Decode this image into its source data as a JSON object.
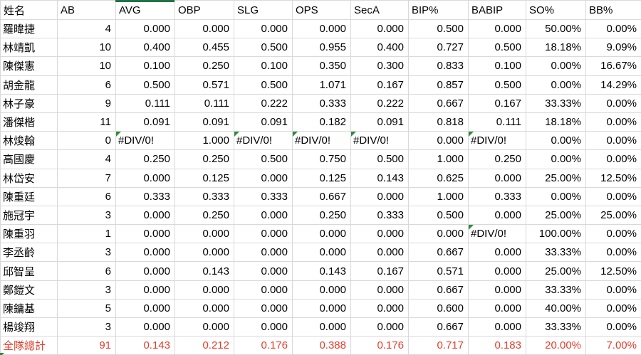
{
  "sheet": {
    "name_header": "姓名",
    "columns": [
      "AB",
      "AVG",
      "OBP",
      "SLG",
      "OPS",
      "SecA",
      "BIP%",
      "BABIP",
      "SO%",
      "BB%"
    ],
    "error_value": "#DIV/0!",
    "rows": [
      {
        "name": "羅暐捷",
        "values": [
          "4",
          "0.000",
          "0.000",
          "0.000",
          "0.000",
          "0.000",
          "0.500",
          "0.000",
          "50.00%",
          "0.00%"
        ]
      },
      {
        "name": "林靖凱",
        "values": [
          "10",
          "0.400",
          "0.455",
          "0.500",
          "0.955",
          "0.400",
          "0.727",
          "0.500",
          "18.18%",
          "9.09%"
        ]
      },
      {
        "name": "陳傑憲",
        "values": [
          "10",
          "0.100",
          "0.250",
          "0.100",
          "0.350",
          "0.300",
          "0.833",
          "0.100",
          "0.00%",
          "16.67%"
        ]
      },
      {
        "name": "胡金龍",
        "values": [
          "6",
          "0.500",
          "0.571",
          "0.500",
          "1.071",
          "0.167",
          "0.857",
          "0.500",
          "0.00%",
          "14.29%"
        ]
      },
      {
        "name": "林子豪",
        "values": [
          "9",
          "0.111",
          "0.111",
          "0.222",
          "0.333",
          "0.222",
          "0.667",
          "0.167",
          "33.33%",
          "0.00%"
        ]
      },
      {
        "name": "潘傑楷",
        "values": [
          "11",
          "0.091",
          "0.091",
          "0.091",
          "0.182",
          "0.091",
          "0.818",
          "0.111",
          "18.18%",
          "0.00%"
        ]
      },
      {
        "name": "林焌翰",
        "values": [
          "0",
          "#DIV/0!",
          "1.000",
          "#DIV/0!",
          "#DIV/0!",
          "#DIV/0!",
          "0.000",
          "#DIV/0!",
          "0.00%",
          "0.00%"
        ]
      },
      {
        "name": "高國慶",
        "values": [
          "4",
          "0.250",
          "0.250",
          "0.500",
          "0.750",
          "0.500",
          "1.000",
          "0.250",
          "0.00%",
          "0.00%"
        ]
      },
      {
        "name": "林岱安",
        "values": [
          "7",
          "0.000",
          "0.125",
          "0.000",
          "0.125",
          "0.143",
          "0.625",
          "0.000",
          "25.00%",
          "12.50%"
        ]
      },
      {
        "name": "陳重廷",
        "values": [
          "6",
          "0.333",
          "0.333",
          "0.333",
          "0.667",
          "0.000",
          "1.000",
          "0.333",
          "0.00%",
          "0.00%"
        ]
      },
      {
        "name": "施冠宇",
        "values": [
          "3",
          "0.000",
          "0.250",
          "0.000",
          "0.250",
          "0.333",
          "0.500",
          "0.000",
          "25.00%",
          "25.00%"
        ]
      },
      {
        "name": "陳重羽",
        "values": [
          "1",
          "0.000",
          "0.000",
          "0.000",
          "0.000",
          "0.000",
          "0.000",
          "#DIV/0!",
          "100.00%",
          "0.00%"
        ]
      },
      {
        "name": "李丞齡",
        "values": [
          "3",
          "0.000",
          "0.000",
          "0.000",
          "0.000",
          "0.000",
          "0.667",
          "0.000",
          "33.33%",
          "0.00%"
        ]
      },
      {
        "name": "邱智呈",
        "values": [
          "6",
          "0.000",
          "0.143",
          "0.000",
          "0.143",
          "0.167",
          "0.571",
          "0.000",
          "25.00%",
          "12.50%"
        ]
      },
      {
        "name": "鄭鎧文",
        "values": [
          "3",
          "0.000",
          "0.000",
          "0.000",
          "0.000",
          "0.000",
          "0.667",
          "0.000",
          "33.33%",
          "0.00%"
        ]
      },
      {
        "name": "陳鏞基",
        "values": [
          "5",
          "0.000",
          "0.000",
          "0.000",
          "0.000",
          "0.000",
          "0.600",
          "0.000",
          "40.00%",
          "0.00%"
        ]
      },
      {
        "name": "楊竣翔",
        "values": [
          "3",
          "0.000",
          "0.000",
          "0.000",
          "0.000",
          "0.000",
          "0.667",
          "0.000",
          "33.33%",
          "0.00%"
        ]
      }
    ],
    "total": {
      "name": "全隊總計",
      "values": [
        "91",
        "0.143",
        "0.212",
        "0.176",
        "0.388",
        "0.176",
        "0.717",
        "0.183",
        "20.00%",
        "7.00%"
      ]
    }
  },
  "colors": {
    "total_text": "#e03e2d",
    "error_indicator": "#2e8b3d",
    "selection_border": "#217346",
    "gridline": "#d9d9d9"
  }
}
